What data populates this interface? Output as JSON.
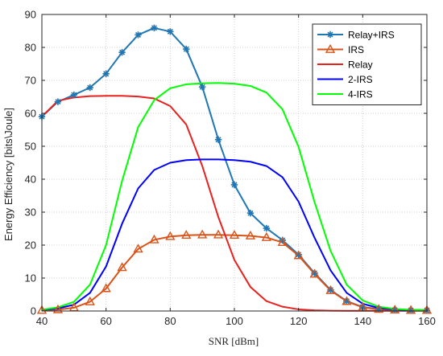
{
  "chart_data": {
    "type": "line",
    "title": "",
    "xlabel": "SNR [dBm]",
    "ylabel": "Energy Efficiency [bits\\Joule]",
    "xlim": [
      40,
      160
    ],
    "ylim": [
      0,
      90
    ],
    "xticks": [
      40,
      60,
      80,
      100,
      120,
      140,
      160
    ],
    "yticks": [
      0,
      10,
      20,
      30,
      40,
      50,
      60,
      70,
      80,
      90
    ],
    "grid": true,
    "legend_position": "top-right",
    "x": [
      40,
      45,
      50,
      55,
      60,
      65,
      70,
      75,
      80,
      85,
      90,
      95,
      100,
      105,
      110,
      115,
      120,
      125,
      130,
      135,
      140,
      145,
      150,
      155,
      160
    ],
    "series": [
      {
        "name": "Relay+IRS",
        "color": "#1f77b4",
        "marker": "asterisk",
        "values": [
          59,
          63.5,
          65.6,
          67.8,
          72,
          78.5,
          83.8,
          85.9,
          84.8,
          79.5,
          68,
          52,
          38.3,
          29.7,
          25.1,
          21.5,
          17.1,
          11.5,
          6.4,
          3.0,
          1.2,
          0.6,
          0.3,
          0.2,
          0.2
        ]
      },
      {
        "name": "IRS",
        "color": "#d95319",
        "marker": "triangle",
        "values": [
          0.2,
          0.4,
          1.0,
          2.8,
          6.8,
          13.2,
          18.8,
          21.6,
          22.6,
          23.0,
          23.1,
          23.1,
          23.0,
          22.8,
          22.3,
          20.8,
          16.8,
          11.2,
          6.2,
          2.9,
          1.1,
          0.5,
          0.3,
          0.2,
          0.2
        ]
      },
      {
        "name": "Relay",
        "color": "#e8211f",
        "marker": "none",
        "values": [
          59,
          63.8,
          64.8,
          65.2,
          65.3,
          65.3,
          65.1,
          64.5,
          62.2,
          56.6,
          44.0,
          28.5,
          15.5,
          7.3,
          3.0,
          1.3,
          0.5,
          0.2,
          0.1,
          0.05,
          0.05,
          0.05,
          0.05,
          0.05,
          0.05
        ]
      },
      {
        "name": "2-IRS",
        "color": "#0000ff",
        "marker": "none",
        "values": [
          0.3,
          0.8,
          1.9,
          5.5,
          13.5,
          26.5,
          37.2,
          42.8,
          45.0,
          45.8,
          46.0,
          46.0,
          45.8,
          45.3,
          44.0,
          40.6,
          33.2,
          22.2,
          12.3,
          5.5,
          2.2,
          0.9,
          0.5,
          0.3,
          0.2
        ]
      },
      {
        "name": "4-IRS",
        "color": "#00ff00",
        "marker": "none",
        "values": [
          0.4,
          1.1,
          2.8,
          8.0,
          20.0,
          39.5,
          55.8,
          64.0,
          67.6,
          68.8,
          69.1,
          69.2,
          69.0,
          68.3,
          66.3,
          61.2,
          49.8,
          33.0,
          18.2,
          8.0,
          3.2,
          1.3,
          0.6,
          0.4,
          0.3
        ]
      }
    ]
  }
}
